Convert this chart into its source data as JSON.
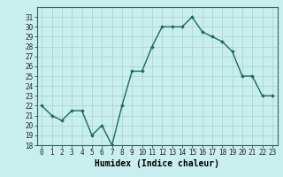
{
  "title": "",
  "xlabel": "Humidex (Indice chaleur)",
  "ylabel": "",
  "x": [
    0,
    1,
    2,
    3,
    4,
    5,
    6,
    7,
    8,
    9,
    10,
    11,
    12,
    13,
    14,
    15,
    16,
    17,
    18,
    19,
    20,
    21,
    22,
    23
  ],
  "y": [
    22,
    21,
    20.5,
    21.5,
    21.5,
    19,
    20,
    18,
    22,
    25.5,
    25.5,
    28,
    30,
    30,
    30,
    31,
    29.5,
    29,
    28.5,
    27.5,
    25,
    25,
    23,
    23
  ],
  "line_color": "#1a6b5a",
  "marker": "D",
  "marker_size": 1.8,
  "bg_color": "#c8eeee",
  "grid_color": "#aacfcf",
  "ylim": [
    18,
    32
  ],
  "yticks": [
    18,
    19,
    20,
    21,
    22,
    23,
    24,
    25,
    26,
    27,
    28,
    29,
    30,
    31
  ],
  "xticks": [
    0,
    1,
    2,
    3,
    4,
    5,
    6,
    7,
    8,
    9,
    10,
    11,
    12,
    13,
    14,
    15,
    16,
    17,
    18,
    19,
    20,
    21,
    22,
    23
  ],
  "tick_fontsize": 5.5,
  "xlabel_fontsize": 7.0,
  "line_width": 1.0
}
